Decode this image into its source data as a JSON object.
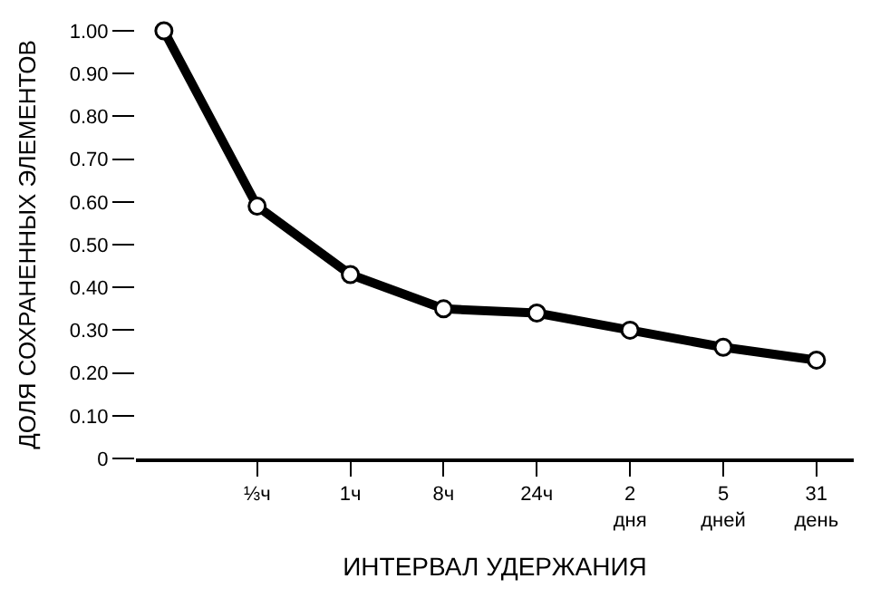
{
  "chart_data": {
    "type": "line",
    "xlabel": "ИНТЕРВАЛ УДЕРЖАНИЯ",
    "ylabel": "ДОЛЯ СОХРАНЕННЫХ ЭЛЕМЕНТОВ",
    "categories": [
      null,
      "⅓ч",
      "1ч",
      "8ч",
      "24ч",
      "2\nдня",
      "5\nдней",
      "31\nдень"
    ],
    "series": [
      {
        "color": "#000000",
        "values": [
          1.0,
          0.59,
          0.43,
          0.35,
          0.34,
          0.3,
          0.26,
          0.23
        ]
      }
    ],
    "ylim": [
      0,
      1.0
    ],
    "yticks": [
      0,
      {
        "value": 0.1,
        "label": "0.10"
      },
      {
        "value": 0.2,
        "label": "0.20"
      },
      {
        "value": 0.3,
        "label": "0.30"
      },
      {
        "value": 0.4,
        "label": "0.40"
      },
      {
        "value": 0.5,
        "label": "0.50"
      },
      {
        "value": 0.6,
        "label": "0.60"
      },
      {
        "value": 0.7,
        "label": "0.70"
      },
      {
        "value": 0.8,
        "label": "0.80"
      },
      {
        "value": 0.9,
        "label": "0.90"
      },
      {
        "value": 1.0,
        "label": "1.00"
      }
    ],
    "legend": false,
    "marker": "circle",
    "line_style": "solid"
  }
}
